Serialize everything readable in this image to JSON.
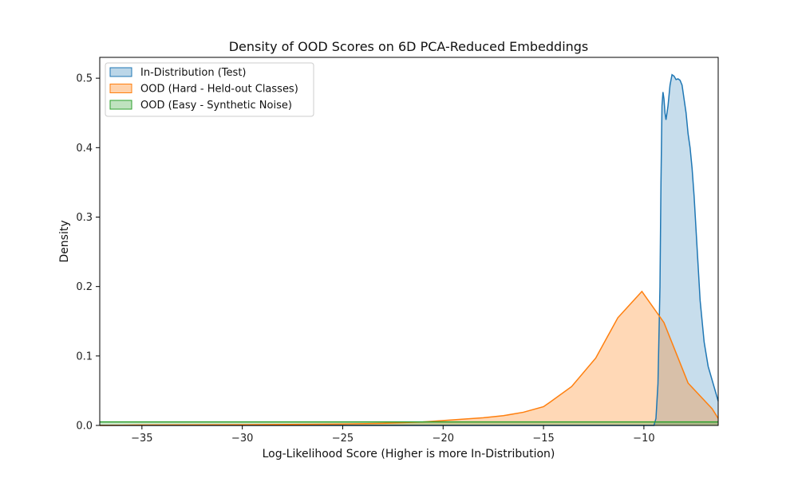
{
  "chart_data": {
    "type": "area",
    "title": "Density of OOD Scores on 6D PCA-Reduced Embeddings",
    "xlabel": "Log-Likelihood Score (Higher is more In-Distribution)",
    "ylabel": "Density",
    "xlim": [
      -37.1,
      -6.3
    ],
    "ylim": [
      0,
      0.53
    ],
    "xticks": [
      -35,
      -30,
      -25,
      -20,
      -15,
      -10
    ],
    "xtick_labels": [
      "−35",
      "−30",
      "−25",
      "−20",
      "−15",
      "−10"
    ],
    "yticks": [
      0.0,
      0.1,
      0.2,
      0.3,
      0.4,
      0.5
    ],
    "ytick_labels": [
      "0.0",
      "0.1",
      "0.2",
      "0.3",
      "0.4",
      "0.5"
    ],
    "grid": false,
    "legend_position": "top-left",
    "series": [
      {
        "name": "In-Distribution (Test)",
        "line_color": "#1f77b4",
        "fill_color": "#1f77b4",
        "fill_opacity": 0.25,
        "x": [
          -37.1,
          -9.5,
          -9.4,
          -9.3,
          -9.2,
          -9.15,
          -9.1,
          -9.05,
          -9.0,
          -8.95,
          -8.9,
          -8.8,
          -8.7,
          -8.6,
          -8.5,
          -8.4,
          -8.3,
          -8.2,
          -8.1,
          -8.0,
          -7.9,
          -7.8,
          -7.7,
          -7.6,
          -7.5,
          -7.4,
          -7.3,
          -7.2,
          -7.0,
          -6.8,
          -6.6,
          -6.4,
          -6.3
        ],
        "y": [
          0.0,
          0.0,
          0.01,
          0.06,
          0.2,
          0.35,
          0.46,
          0.48,
          0.47,
          0.45,
          0.44,
          0.46,
          0.49,
          0.505,
          0.503,
          0.498,
          0.499,
          0.497,
          0.49,
          0.47,
          0.45,
          0.42,
          0.4,
          0.37,
          0.33,
          0.28,
          0.23,
          0.18,
          0.12,
          0.085,
          0.065,
          0.045,
          0.035
        ]
      },
      {
        "name": "OOD (Hard - Held-out Classes)",
        "line_color": "#ff7f0e",
        "fill_color": "#ff7f0e",
        "fill_opacity": 0.3,
        "x": [
          -37.1,
          -35,
          -30,
          -25,
          -23,
          -22,
          -21,
          -20,
          -19,
          -18,
          -17,
          -16,
          -15,
          -14.7,
          -13.6,
          -12.4,
          -11.3,
          -10.1,
          -9.0,
          -7.8,
          -6.6,
          -6.3
        ],
        "y": [
          0.0,
          0.0005,
          0.001,
          0.002,
          0.003,
          0.004,
          0.005,
          0.007,
          0.009,
          0.011,
          0.014,
          0.019,
          0.027,
          0.033,
          0.056,
          0.097,
          0.155,
          0.193,
          0.148,
          0.061,
          0.024,
          0.01
        ]
      },
      {
        "name": "OOD (Easy - Synthetic Noise)",
        "line_color": "#2ca02c",
        "fill_color": "#2ca02c",
        "fill_opacity": 0.25,
        "x": [
          -37.1,
          -30,
          -20,
          -10,
          -6.3
        ],
        "y": [
          0.005,
          0.005,
          0.005,
          0.005,
          0.005
        ]
      }
    ]
  }
}
